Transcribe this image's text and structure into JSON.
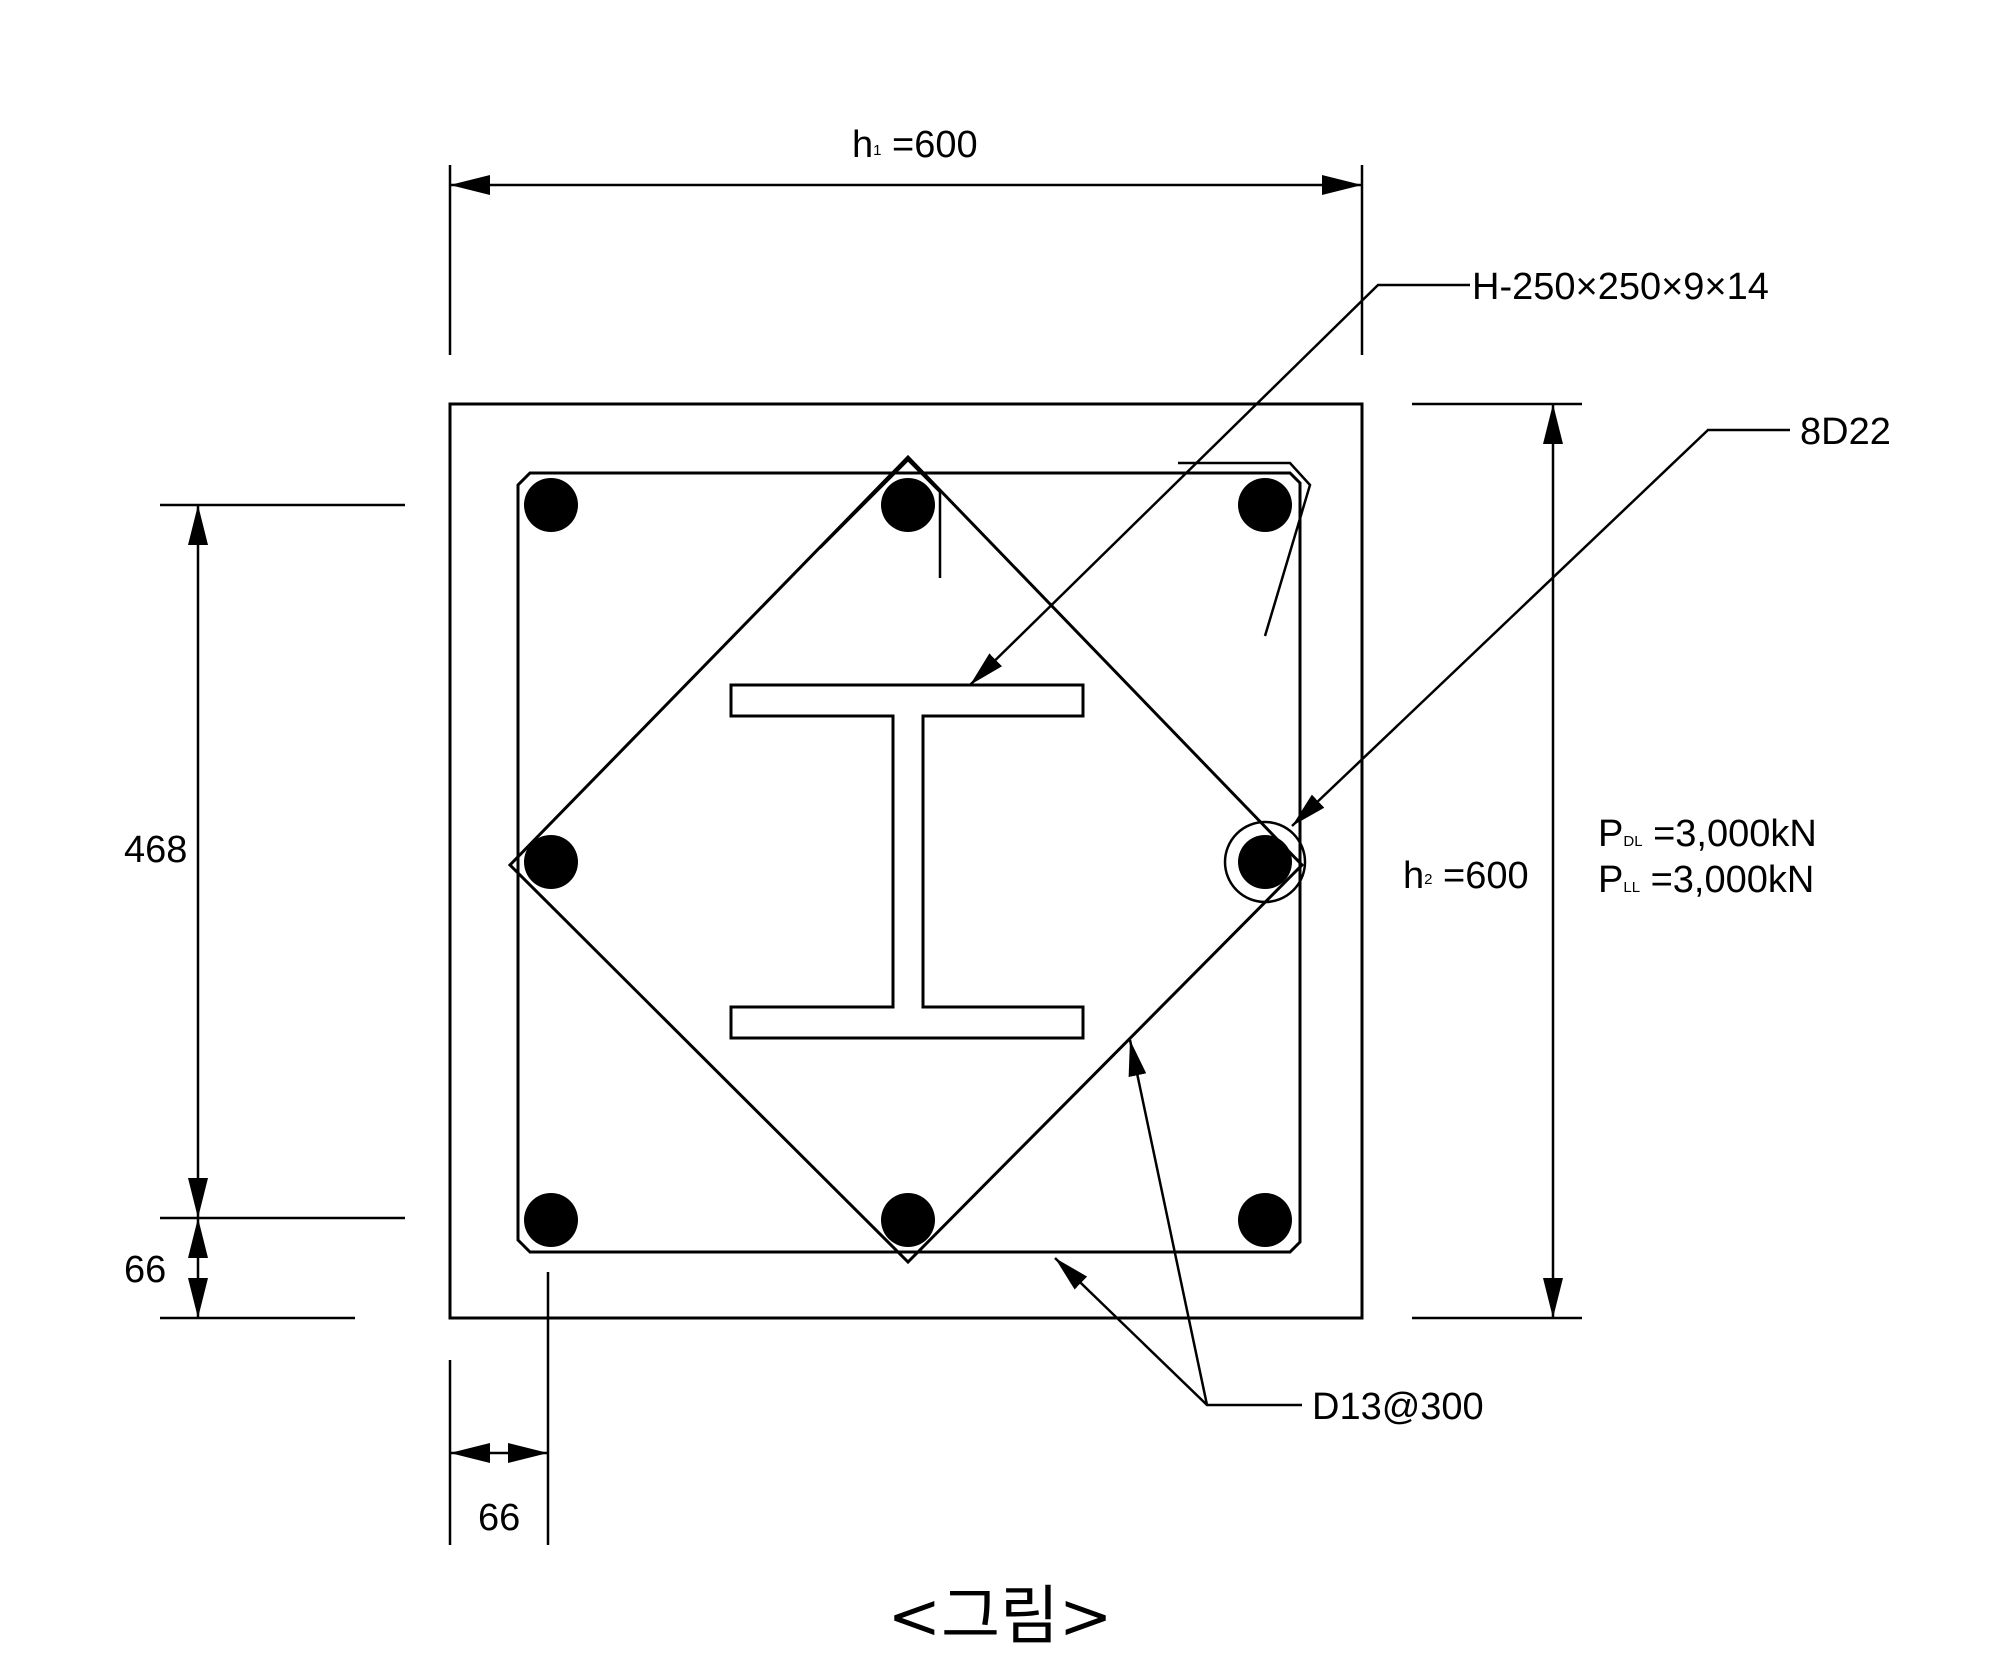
{
  "labels": {
    "width_dim_main": "h",
    "width_dim_sub": "1",
    "width_dim_value": " =600",
    "height_dim_main": "h",
    "height_dim_sub": "2",
    "height_dim_value": " =600",
    "steel_section": "H-250×250×9×14",
    "main_rebar": "8D22",
    "tie_rebar": "D13@300",
    "dim_468": "468",
    "dim_66_vertical": "66",
    "dim_66_horizontal": "66",
    "load_dl_main": "P",
    "load_dl_sub": "DL",
    "load_dl_value": " =3,000kN",
    "load_ll_main": "P",
    "load_ll_sub": "LL",
    "load_ll_value": " =3,000kN"
  },
  "caption": "<그림>",
  "colors": {
    "line": "#000000",
    "background": "#ffffff"
  }
}
